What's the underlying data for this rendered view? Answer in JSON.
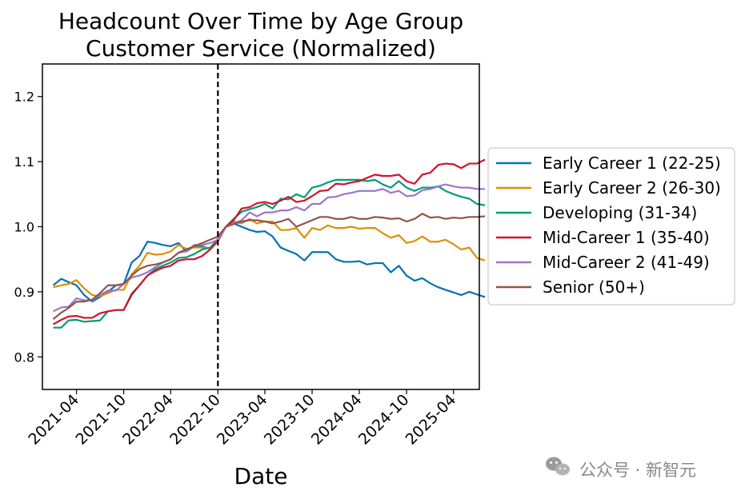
{
  "chart_data": {
    "type": "line",
    "title": "Headcount Over Time by Age Group",
    "subtitle": "Customer Service (Normalized)",
    "xlabel": "Date",
    "ylabel": "",
    "ylim": [
      0.75,
      1.25
    ],
    "xlim": [
      "2020-11-20",
      "2025-07-10"
    ],
    "yticks": [
      0.8,
      0.9,
      1.0,
      1.1,
      1.2
    ],
    "ytick_labels": [
      "0.8",
      "0.9",
      "1.0",
      "1.1",
      "1.2"
    ],
    "xticks": [
      "2021-04-01",
      "2021-10-01",
      "2022-04-01",
      "2022-10-01",
      "2023-04-01",
      "2023-10-01",
      "2024-04-01",
      "2024-10-01",
      "2025-04-01"
    ],
    "xtick_labels": [
      "2021-04",
      "2021-10",
      "2022-04",
      "2022-10",
      "2023-04",
      "2023-10",
      "2024-04",
      "2024-10",
      "2025-04"
    ],
    "reference_line": {
      "x": "2022-10-01",
      "style": "dashed",
      "color": "#000000"
    },
    "grid": false,
    "legend_position": "center-right-outside",
    "start_date": "2021-01-01",
    "series": [
      {
        "name": "Early Career 1 (22-25)",
        "color": "#0173b2",
        "values": [
          0.91,
          0.92,
          0.915,
          0.91,
          0.895,
          0.885,
          0.892,
          0.9,
          0.91,
          0.912,
          0.945,
          0.955,
          0.977,
          0.975,
          0.972,
          0.97,
          0.975,
          0.962,
          0.97,
          0.97,
          0.966,
          0.98,
          1.0,
          1.005,
          1.0,
          0.995,
          0.992,
          0.993,
          0.985,
          0.968,
          0.963,
          0.958,
          0.948,
          0.961,
          0.961,
          0.961,
          0.95,
          0.946,
          0.946,
          0.947,
          0.942,
          0.944,
          0.944,
          0.93,
          0.94,
          0.925,
          0.917,
          0.921,
          0.913,
          0.907,
          0.903,
          0.899,
          0.895,
          0.9,
          0.896,
          0.892
        ]
      },
      {
        "name": "Early Career 2 (26-30)",
        "color": "#de8f05",
        "values": [
          0.907,
          0.91,
          0.912,
          0.918,
          0.905,
          0.895,
          0.893,
          0.898,
          0.903,
          0.903,
          0.927,
          0.94,
          0.96,
          0.957,
          0.958,
          0.962,
          0.972,
          0.966,
          0.968,
          0.968,
          0.967,
          0.982,
          1.0,
          1.008,
          1.005,
          1.012,
          1.005,
          1.008,
          1.008,
          0.995,
          0.995,
          0.998,
          0.983,
          0.998,
          0.995,
          1.002,
          0.998,
          0.998,
          1.0,
          0.997,
          0.998,
          0.998,
          0.99,
          0.983,
          0.987,
          0.975,
          0.978,
          0.985,
          0.977,
          0.977,
          0.98,
          0.973,
          0.965,
          0.968,
          0.952,
          0.948
        ]
      },
      {
        "name": "Developing (31-34)",
        "color": "#029e73",
        "values": [
          0.845,
          0.845,
          0.856,
          0.857,
          0.854,
          0.855,
          0.856,
          0.87,
          0.872,
          0.872,
          0.895,
          0.91,
          0.925,
          0.935,
          0.94,
          0.945,
          0.952,
          0.953,
          0.958,
          0.965,
          0.968,
          0.98,
          1.0,
          1.012,
          1.023,
          1.027,
          1.03,
          1.035,
          1.028,
          1.043,
          1.042,
          1.05,
          1.045,
          1.06,
          1.063,
          1.068,
          1.072,
          1.072,
          1.072,
          1.072,
          1.07,
          1.072,
          1.065,
          1.06,
          1.07,
          1.06,
          1.055,
          1.06,
          1.06,
          1.062,
          1.055,
          1.05,
          1.046,
          1.043,
          1.035,
          1.033
        ]
      },
      {
        "name": "Mid-Career 1 (35-40)",
        "color": "#d0132e",
        "values": [
          0.85,
          0.857,
          0.862,
          0.863,
          0.86,
          0.86,
          0.867,
          0.87,
          0.872,
          0.872,
          0.897,
          0.91,
          0.925,
          0.932,
          0.937,
          0.94,
          0.948,
          0.95,
          0.95,
          0.955,
          0.965,
          0.978,
          1.0,
          1.01,
          1.028,
          1.03,
          1.036,
          1.038,
          1.035,
          1.04,
          1.046,
          1.038,
          1.04,
          1.047,
          1.055,
          1.056,
          1.066,
          1.065,
          1.068,
          1.07,
          1.075,
          1.08,
          1.078,
          1.078,
          1.08,
          1.07,
          1.066,
          1.08,
          1.083,
          1.095,
          1.097,
          1.096,
          1.09,
          1.097,
          1.097,
          1.103
        ]
      },
      {
        "name": "Mid-Career 2 (41-49)",
        "color": "#9e75c8",
        "values": [
          0.87,
          0.876,
          0.877,
          0.89,
          0.887,
          0.887,
          0.895,
          0.902,
          0.902,
          0.912,
          0.922,
          0.925,
          0.93,
          0.938,
          0.945,
          0.95,
          0.96,
          0.962,
          0.972,
          0.972,
          0.975,
          0.98,
          1.0,
          1.005,
          1.01,
          1.022,
          1.016,
          1.022,
          1.022,
          1.025,
          1.025,
          1.03,
          1.025,
          1.035,
          1.035,
          1.045,
          1.046,
          1.05,
          1.052,
          1.055,
          1.055,
          1.055,
          1.058,
          1.052,
          1.055,
          1.047,
          1.048,
          1.056,
          1.058,
          1.062,
          1.065,
          1.062,
          1.06,
          1.06,
          1.058,
          1.058
        ]
      },
      {
        "name": "Senior (50+)",
        "color": "#8c564b",
        "values": [
          0.858,
          0.868,
          0.875,
          0.885,
          0.885,
          0.888,
          0.898,
          0.91,
          0.91,
          0.912,
          0.925,
          0.935,
          0.94,
          0.942,
          0.945,
          0.95,
          0.96,
          0.965,
          0.97,
          0.975,
          0.98,
          0.985,
          1.0,
          1.004,
          1.008,
          1.01,
          1.01,
          1.008,
          1.005,
          1.008,
          1.012,
          1.0,
          1.005,
          1.01,
          1.015,
          1.015,
          1.012,
          1.012,
          1.015,
          1.012,
          1.012,
          1.015,
          1.014,
          1.012,
          1.013,
          1.008,
          1.012,
          1.02,
          1.014,
          1.015,
          1.012,
          1.014,
          1.013,
          1.015,
          1.015,
          1.016
        ]
      }
    ]
  },
  "watermark": {
    "icon": "wechat-icon",
    "text": "公众号 · 新智元"
  }
}
